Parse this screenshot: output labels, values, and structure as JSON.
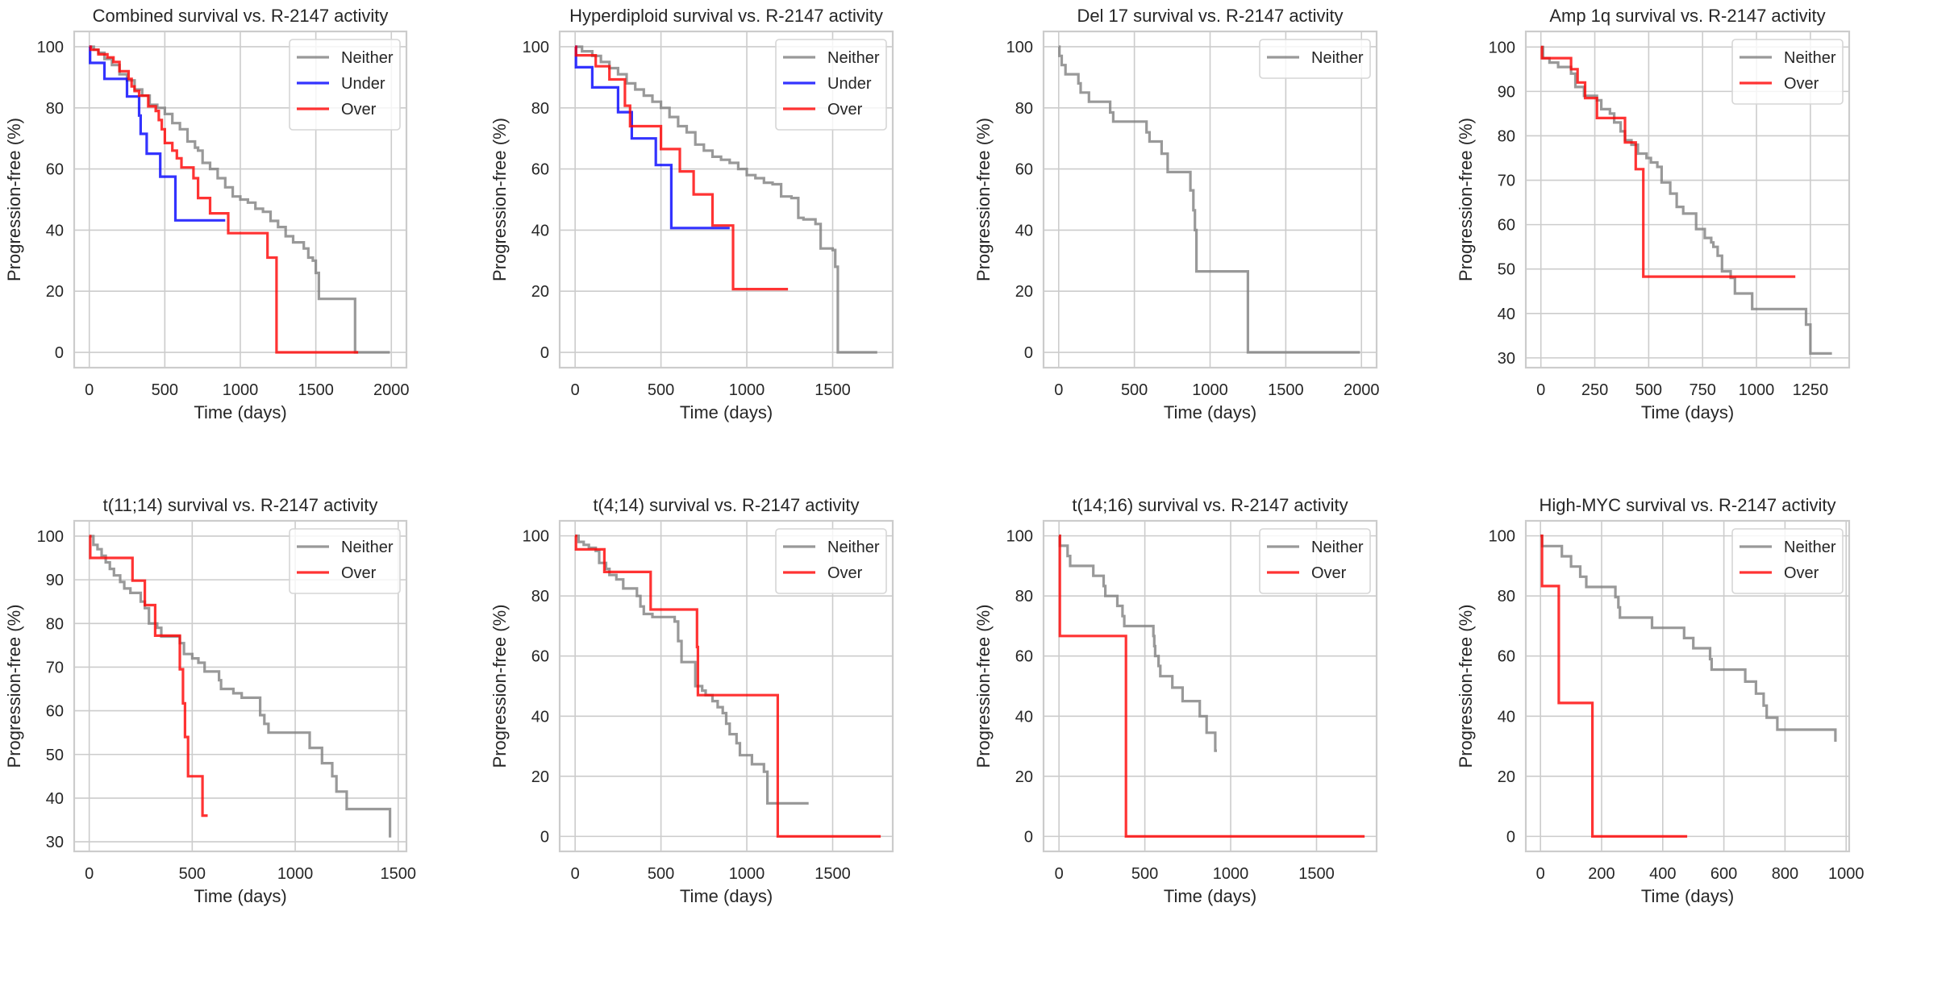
{
  "figure": {
    "series_colors": {
      "Neither": "#808080",
      "Under": "#0000ff",
      "Over": "#ff0000"
    }
  },
  "chart_data": [
    {
      "type": "line",
      "step": true,
      "title": "Combined survival vs. R-2147 activity",
      "xlabel": "Time (days)",
      "ylabel": "Progression-free (%)",
      "xlim": [
        -100,
        2100
      ],
      "ylim": [
        -5,
        105
      ],
      "xticks": [
        0,
        500,
        1000,
        1500,
        2000
      ],
      "yticks": [
        0,
        20,
        40,
        60,
        80,
        100
      ],
      "grid": true,
      "legend": {
        "position": "top-right",
        "entries": [
          "Neither",
          "Under",
          "Over"
        ]
      },
      "series": [
        {
          "name": "Neither",
          "x": [
            0,
            30,
            60,
            100,
            150,
            200,
            250,
            300,
            350,
            400,
            450,
            500,
            550,
            600,
            650,
            700,
            720,
            750,
            800,
            850,
            900,
            950,
            1000,
            1050,
            1100,
            1150,
            1200,
            1250,
            1300,
            1350,
            1400,
            1420,
            1450,
            1480,
            1500,
            1520,
            1750,
            1760,
            1990
          ],
          "y": [
            100,
            99,
            98,
            96,
            94,
            91,
            89,
            86,
            84,
            81,
            80,
            78,
            75,
            73,
            69,
            67,
            66,
            62,
            60,
            57,
            54,
            51,
            50,
            49,
            47,
            46,
            43,
            41,
            38,
            36,
            36,
            34,
            31,
            30,
            26,
            17.5,
            17.5,
            0,
            0
          ]
        },
        {
          "name": "Under",
          "x": [
            0,
            5,
            100,
            250,
            330,
            340,
            360,
            380,
            470,
            570,
            900
          ],
          "y": [
            100,
            94.7,
            89.5,
            83.7,
            77.5,
            71.5,
            71.5,
            65,
            57.5,
            43.2,
            43.2
          ]
        },
        {
          "name": "Over",
          "x": [
            0,
            10,
            60,
            120,
            160,
            200,
            260,
            280,
            300,
            330,
            390,
            440,
            460,
            480,
            500,
            550,
            580,
            610,
            690,
            720,
            800,
            920,
            1180,
            1240,
            1780
          ],
          "y": [
            100,
            99,
            97.5,
            96.5,
            95,
            92,
            89.5,
            87,
            85.5,
            84,
            80.5,
            79,
            76,
            73,
            68.5,
            66,
            63.5,
            60.5,
            57,
            50.5,
            45.5,
            39,
            31,
            0,
            0
          ]
        }
      ]
    },
    {
      "type": "line",
      "step": true,
      "title": "Hyperdiploid survival vs. R-2147 activity",
      "xlabel": "Time (days)",
      "ylabel": "Progression-free (%)",
      "xlim": [
        -90,
        1850
      ],
      "ylim": [
        -5,
        105
      ],
      "xticks": [
        0,
        500,
        1000,
        1500
      ],
      "yticks": [
        0,
        20,
        40,
        60,
        80,
        100
      ],
      "grid": true,
      "legend": {
        "position": "top-right",
        "entries": [
          "Neither",
          "Under",
          "Over"
        ]
      },
      "series": [
        {
          "name": "Neither",
          "x": [
            0,
            40,
            100,
            150,
            200,
            250,
            300,
            350,
            400,
            450,
            500,
            550,
            600,
            650,
            700,
            750,
            800,
            850,
            900,
            950,
            1000,
            1050,
            1100,
            1150,
            1200,
            1260,
            1300,
            1330,
            1400,
            1430,
            1500,
            1515,
            1530,
            1760
          ],
          "y": [
            100,
            98.5,
            97,
            95,
            93,
            91,
            88,
            86,
            84,
            82,
            80,
            77,
            74,
            72,
            68,
            66,
            64,
            63,
            62,
            60,
            58,
            57,
            55.5,
            55,
            51,
            50.5,
            44,
            43.5,
            42,
            34,
            33.5,
            28,
            0,
            0
          ]
        },
        {
          "name": "Under",
          "x": [
            0,
            5,
            100,
            250,
            330,
            470,
            560,
            900
          ],
          "y": [
            100,
            93.3,
            86.7,
            78.6,
            70,
            61.3,
            40.7,
            40.7
          ]
        },
        {
          "name": "Over",
          "x": [
            0,
            5,
            120,
            200,
            290,
            320,
            500,
            610,
            690,
            800,
            920,
            1240
          ],
          "y": [
            100,
            97.2,
            93.6,
            89.3,
            80.7,
            74,
            66.5,
            59.2,
            51.7,
            41.5,
            20.7,
            20.7
          ]
        }
      ]
    },
    {
      "type": "line",
      "step": true,
      "title": "Del 17 survival vs. R-2147 activity",
      "xlabel": "Time (days)",
      "ylabel": "Progression-free (%)",
      "xlim": [
        -100,
        2100
      ],
      "ylim": [
        -5,
        105
      ],
      "xticks": [
        0,
        500,
        1000,
        1500,
        2000
      ],
      "yticks": [
        0,
        20,
        40,
        60,
        80,
        100
      ],
      "grid": true,
      "legend": {
        "position": "top-right",
        "entries": [
          "Neither"
        ]
      },
      "series": [
        {
          "name": "Neither",
          "x": [
            0,
            5,
            20,
            45,
            130,
            145,
            200,
            340,
            360,
            580,
            600,
            680,
            720,
            870,
            890,
            900,
            910,
            1250,
            1990
          ],
          "y": [
            100,
            97,
            94,
            91,
            88,
            85,
            82,
            78.5,
            75.5,
            72,
            69,
            65,
            59,
            53,
            46.5,
            40,
            26.5,
            0,
            0
          ]
        }
      ]
    },
    {
      "type": "line",
      "step": true,
      "title": "Amp 1q survival vs. R-2147 activity",
      "xlabel": "Time (days)",
      "ylabel": "Progression-free (%)",
      "xlim": [
        -70,
        1430
      ],
      "ylim": [
        27.8,
        103.5
      ],
      "xticks": [
        0,
        250,
        500,
        750,
        1000,
        1250
      ],
      "yticks": [
        30,
        40,
        50,
        60,
        70,
        80,
        90,
        100
      ],
      "grid": true,
      "legend": {
        "position": "top-right",
        "entries": [
          "Neither",
          "Over"
        ]
      },
      "series": [
        {
          "name": "Neither",
          "x": [
            0,
            10,
            40,
            80,
            140,
            160,
            200,
            260,
            280,
            320,
            340,
            370,
            390,
            420,
            450,
            490,
            510,
            540,
            560,
            600,
            630,
            660,
            700,
            720,
            760,
            790,
            800,
            820,
            840,
            880,
            900,
            960,
            980,
            1230,
            1250,
            1350
          ],
          "y": [
            100,
            97.5,
            96.5,
            95.5,
            94,
            91,
            89,
            88,
            86,
            85,
            83,
            81,
            79,
            78,
            76,
            75,
            74,
            73,
            69.5,
            67,
            64,
            62.5,
            62.5,
            59,
            57,
            56,
            55,
            53,
            49.5,
            48,
            44.5,
            44.5,
            41,
            37.5,
            31,
            31
          ]
        },
        {
          "name": "Over",
          "x": [
            0,
            5,
            140,
            170,
            205,
            260,
            390,
            440,
            475,
            1180
          ],
          "y": [
            100,
            97.5,
            95,
            92,
            88.5,
            84,
            78.5,
            72.5,
            48.3,
            48.3
          ]
        }
      ]
    },
    {
      "type": "line",
      "step": true,
      "title": "t(11;14) survival vs. R-2147 activity",
      "xlabel": "Time (days)",
      "ylabel": "Progression-free (%)",
      "xlim": [
        -73,
        1540
      ],
      "ylim": [
        27.8,
        103.5
      ],
      "xticks": [
        0,
        500,
        1000,
        1500
      ],
      "yticks": [
        30,
        40,
        50,
        60,
        70,
        80,
        90,
        100
      ],
      "grid": true,
      "legend": {
        "position": "top-right",
        "entries": [
          "Neither",
          "Over"
        ]
      },
      "series": [
        {
          "name": "Neither",
          "x": [
            0,
            20,
            40,
            60,
            80,
            100,
            120,
            150,
            170,
            200,
            250,
            270,
            290,
            330,
            350,
            400,
            440,
            460,
            500,
            530,
            560,
            630,
            640,
            700,
            740,
            830,
            850,
            870,
            1070,
            1130,
            1180,
            1200,
            1250,
            1460
          ],
          "y": [
            100,
            98,
            97,
            95.5,
            94,
            92.5,
            91,
            89.5,
            88,
            87,
            85,
            83.5,
            80,
            79,
            77,
            77,
            75.5,
            73,
            72,
            71,
            69,
            67,
            65,
            64,
            63,
            59,
            57,
            55,
            51.5,
            48,
            45,
            41.5,
            37.5,
            31
          ]
        },
        {
          "name": "Over",
          "x": [
            0,
            5,
            210,
            270,
            320,
            440,
            455,
            465,
            480,
            550,
            575
          ],
          "y": [
            100,
            95,
            89.8,
            84.2,
            77.2,
            69.5,
            61.7,
            54,
            45,
            36,
            36
          ]
        }
      ]
    },
    {
      "type": "line",
      "step": true,
      "title": "t(4;14) survival vs. R-2147 activity",
      "xlabel": "Time (days)",
      "ylabel": "Progression-free (%)",
      "xlim": [
        -90,
        1850
      ],
      "ylim": [
        -5,
        105
      ],
      "xticks": [
        0,
        500,
        1000,
        1500
      ],
      "yticks": [
        0,
        20,
        40,
        60,
        80,
        100
      ],
      "grid": true,
      "legend": {
        "position": "top-right",
        "entries": [
          "Neither",
          "Over"
        ]
      },
      "series": [
        {
          "name": "Neither",
          "x": [
            0,
            20,
            50,
            80,
            120,
            140,
            180,
            200,
            240,
            280,
            360,
            380,
            400,
            450,
            580,
            600,
            620,
            640,
            700,
            740,
            760,
            800,
            830,
            860,
            880,
            900,
            940,
            960,
            1030,
            1100,
            1120,
            1360
          ],
          "y": [
            100,
            98,
            97,
            96,
            95,
            91,
            89,
            87,
            85.5,
            82.5,
            80,
            76.5,
            74,
            73,
            71.5,
            65,
            58,
            58,
            50,
            48.5,
            47,
            45,
            43,
            41,
            37.5,
            34,
            31,
            27,
            24,
            21.5,
            11,
            11
          ]
        },
        {
          "name": "Over",
          "x": [
            0,
            5,
            170,
            440,
            710,
            715,
            1180,
            1780
          ],
          "y": [
            100,
            95.5,
            88,
            75.5,
            63,
            47,
            0,
            0
          ]
        }
      ]
    },
    {
      "type": "line",
      "step": true,
      "title": "t(14;16) survival vs. R-2147 activity",
      "xlabel": "Time (days)",
      "ylabel": "Progression-free (%)",
      "xlim": [
        -90,
        1850
      ],
      "ylim": [
        -5,
        105
      ],
      "xticks": [
        0,
        500,
        1000,
        1500
      ],
      "yticks": [
        0,
        20,
        40,
        60,
        80,
        100
      ],
      "grid": true,
      "legend": {
        "position": "top-right",
        "entries": [
          "Neither",
          "Over"
        ]
      },
      "series": [
        {
          "name": "Neither",
          "x": [
            0,
            5,
            50,
            65,
            200,
            260,
            270,
            340,
            370,
            380,
            550,
            555,
            560,
            580,
            590,
            660,
            720,
            820,
            860,
            910,
            920
          ],
          "y": [
            100,
            96.7,
            93.3,
            90,
            86.7,
            83.3,
            80,
            76.7,
            73.3,
            70,
            66.7,
            63.3,
            60,
            56.7,
            53.3,
            49.5,
            45,
            40,
            34.5,
            28.5,
            28.5
          ]
        },
        {
          "name": "Over",
          "x": [
            0,
            5,
            390,
            1780
          ],
          "y": [
            100,
            66.7,
            0,
            0
          ]
        }
      ]
    },
    {
      "type": "line",
      "step": true,
      "title": "High-MYC survival vs. R-2147 activity",
      "xlabel": "Time (days)",
      "ylabel": "Progression-free (%)",
      "xlim": [
        -48,
        1010
      ],
      "ylim": [
        -5,
        105
      ],
      "xticks": [
        0,
        200,
        400,
        600,
        800,
        1000
      ],
      "yticks": [
        0,
        20,
        40,
        60,
        80,
        100
      ],
      "grid": true,
      "legend": {
        "position": "top-right",
        "entries": [
          "Neither",
          "Over"
        ]
      },
      "series": [
        {
          "name": "Neither",
          "x": [
            0,
            5,
            70,
            100,
            130,
            150,
            245,
            255,
            260,
            365,
            470,
            500,
            555,
            560,
            670,
            705,
            730,
            740,
            775,
            965
          ],
          "y": [
            100,
            96.6,
            93.2,
            89.8,
            86.4,
            83,
            79.6,
            76.2,
            72.8,
            69.4,
            66,
            62.6,
            59,
            55.5,
            51.5,
            47.5,
            43.5,
            39.5,
            35.5,
            31.5
          ]
        },
        {
          "name": "Over",
          "x": [
            0,
            5,
            60,
            170,
            480
          ],
          "y": [
            100,
            83.3,
            44.4,
            0,
            0
          ]
        }
      ]
    }
  ]
}
